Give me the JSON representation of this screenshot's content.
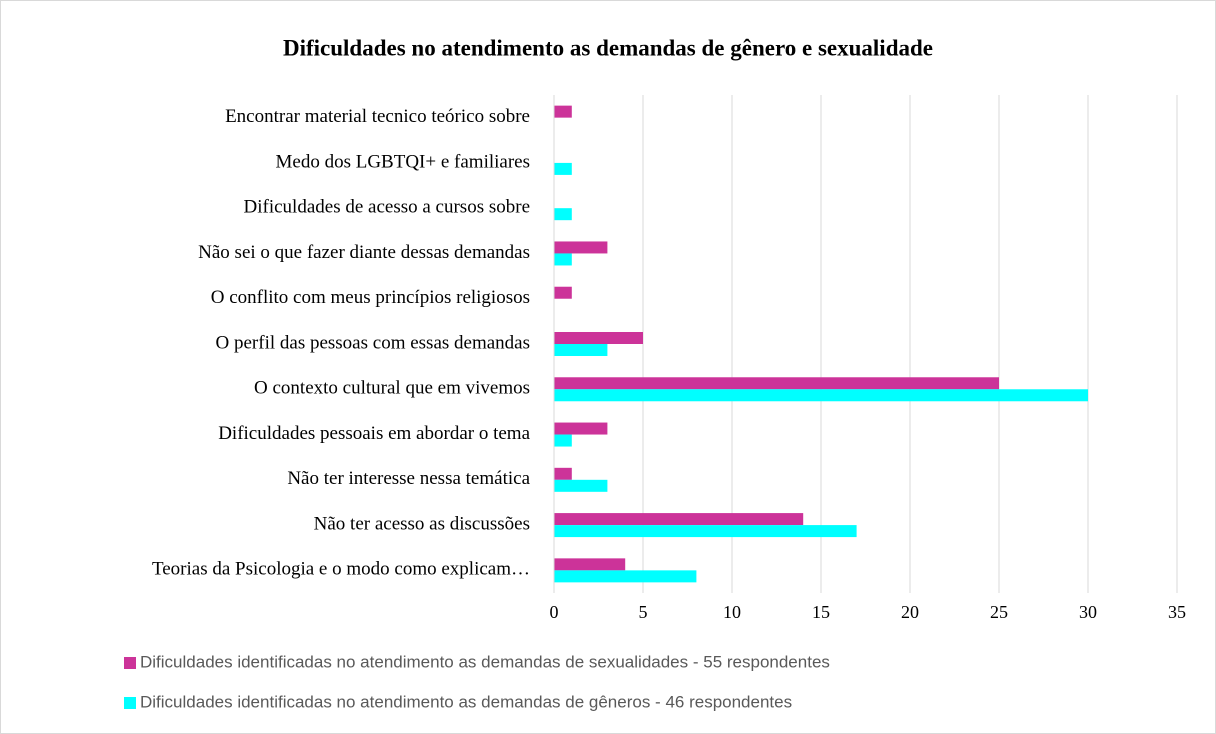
{
  "chart_data": {
    "type": "bar",
    "orientation": "horizontal",
    "title": "Dificuldades no atendimento as demandas de gênero e sexualidade",
    "categories": [
      "Encontrar material tecnico teórico sobre",
      "Medo dos LGBTQI+ e familiares",
      "Dificuldades de acesso a cursos sobre",
      "Não sei o que fazer diante  dessas demandas",
      "O conflito com meus princípios religiosos",
      "O perfil das pessoas com essas demandas",
      "O contexto cultural que em vivemos",
      "Dificuldades pessoais em abordar o tema",
      "Não ter interesse nessa temática",
      "Não ter acesso as discussões",
      "Teorias da Psicologia e o modo como explicam…"
    ],
    "series": [
      {
        "name": "Dificuldades identificadas no atendimento as demandas de sexualidades - 55 respondentes",
        "color": "#cc3399",
        "values": [
          1,
          0,
          0,
          3,
          1,
          5,
          25,
          3,
          1,
          14,
          4
        ]
      },
      {
        "name": "Dificuldades identificadas no atendimento as demandas de gêneros - 46 respondentes",
        "color": "#00ffff",
        "values": [
          0,
          1,
          1,
          1,
          0,
          3,
          30,
          1,
          3,
          17,
          8
        ]
      }
    ],
    "xlim": [
      0,
      35
    ],
    "xticks": [
      0,
      5,
      10,
      15,
      20,
      25,
      30,
      35
    ],
    "grid": true,
    "legend": "bottom"
  }
}
